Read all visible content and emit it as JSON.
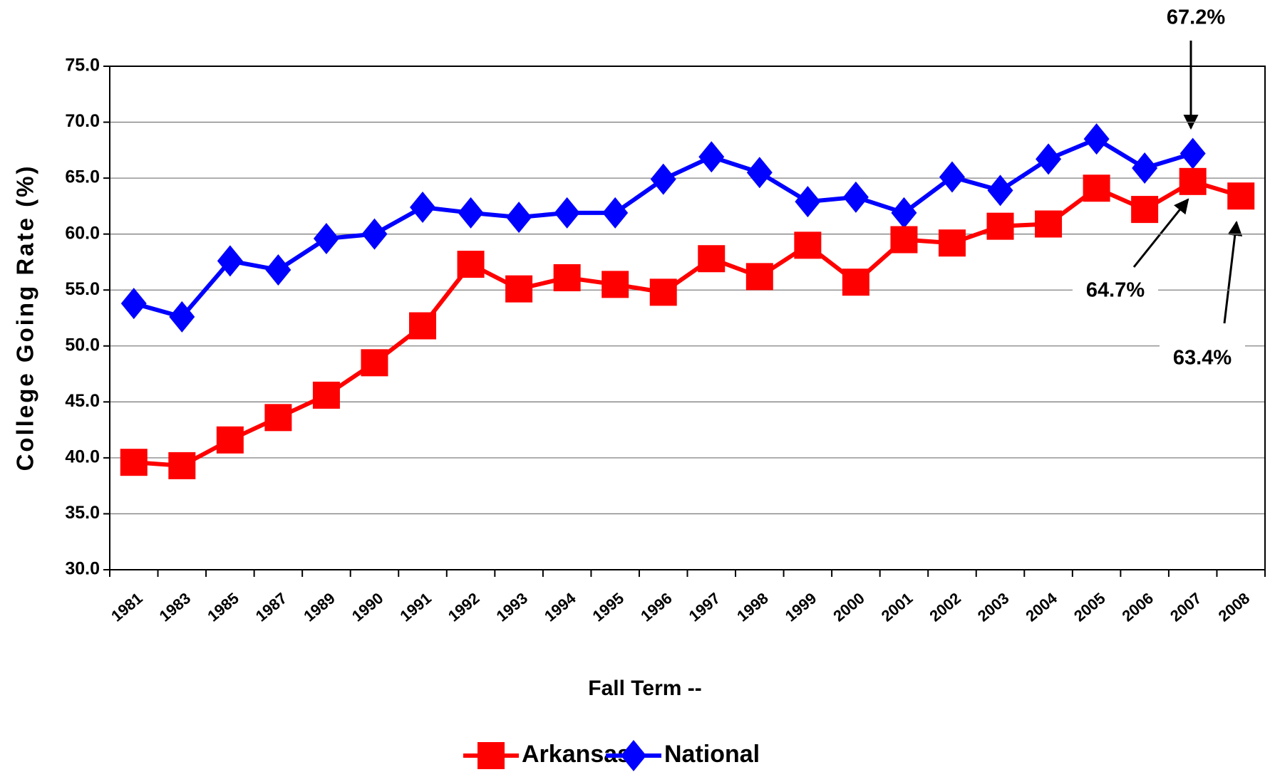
{
  "chart_data": {
    "type": "line",
    "ylabel": "College Going Rate (%)",
    "xlabel": "Fall Term --",
    "categories": [
      "1981",
      "1983",
      "1985",
      "1987",
      "1989",
      "1990",
      "1991",
      "1992",
      "1993",
      "1994",
      "1995",
      "1996",
      "1997",
      "1998",
      "1999",
      "2000",
      "2001",
      "2002",
      "2003",
      "2004",
      "2005",
      "2006",
      "2007",
      "2008"
    ],
    "series": [
      {
        "name": "Arkansas",
        "color": "#ff0000",
        "marker": "square",
        "values": [
          39.6,
          39.3,
          41.6,
          43.6,
          45.6,
          48.5,
          51.8,
          57.3,
          55.1,
          56.1,
          55.5,
          54.8,
          57.8,
          56.2,
          59.0,
          55.7,
          59.5,
          59.2,
          60.7,
          60.9,
          64.1,
          62.2,
          64.7,
          63.4
        ]
      },
      {
        "name": "National",
        "color": "#0000ff",
        "marker": "diamond",
        "values": [
          53.8,
          52.6,
          57.6,
          56.8,
          59.6,
          60.0,
          62.4,
          61.9,
          61.5,
          61.9,
          61.9,
          64.9,
          66.9,
          65.5,
          62.9,
          63.3,
          61.9,
          65.1,
          63.9,
          66.7,
          68.5,
          65.9,
          67.2,
          null
        ]
      }
    ],
    "ylim": [
      30,
      75
    ],
    "yticks": [
      {
        "value": 30,
        "label": "30.0"
      },
      {
        "value": 35,
        "label": "35.0"
      },
      {
        "value": 40,
        "label": "40.0"
      },
      {
        "value": 45,
        "label": "45.0"
      },
      {
        "value": 50,
        "label": "50.0"
      },
      {
        "value": 55,
        "label": "55.0"
      },
      {
        "value": 60,
        "label": "60.0"
      },
      {
        "value": 65,
        "label": "65.0"
      },
      {
        "value": 70,
        "label": "70.0"
      },
      {
        "value": 75,
        "label": "75.0"
      }
    ],
    "grid": true,
    "legend": "bottom",
    "annotations": [
      {
        "text": "67.2%"
      },
      {
        "text": "64.7%"
      },
      {
        "text": "63.4%"
      }
    ]
  }
}
